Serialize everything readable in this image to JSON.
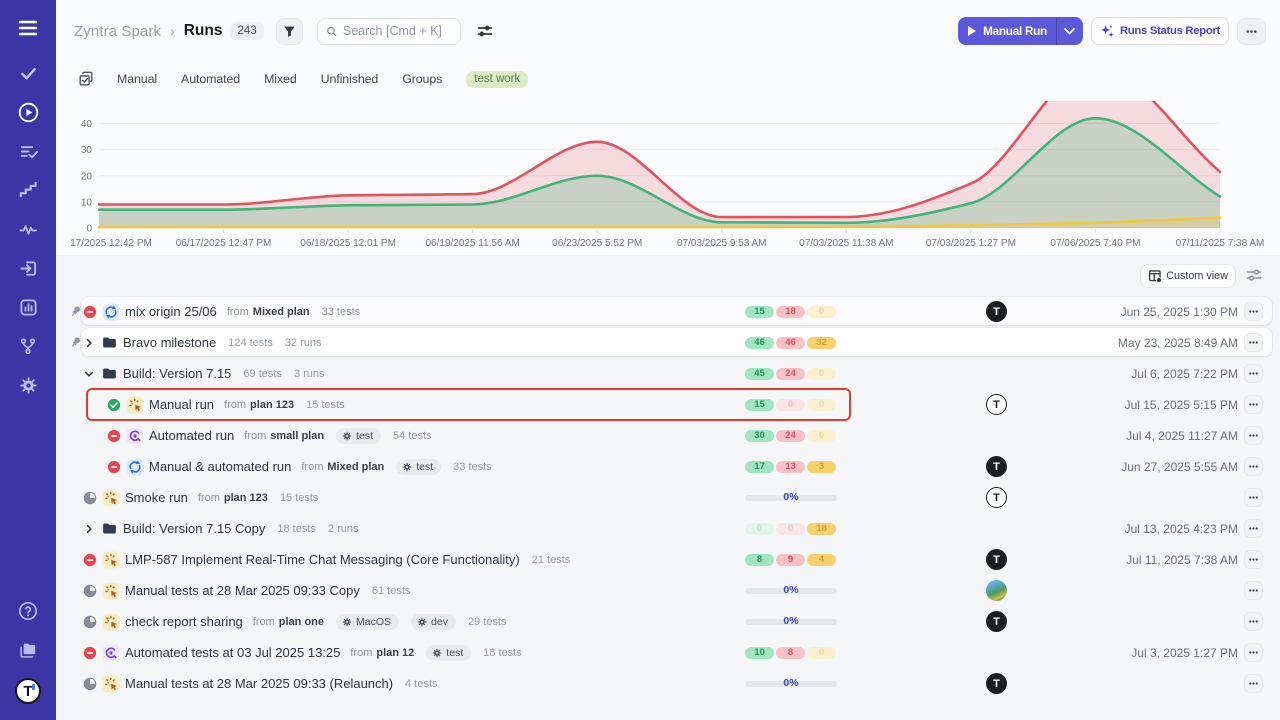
{
  "app": {
    "accent_color": "#5b59d8",
    "sidebar_color": "#3b35a6",
    "highlight_color": "#e7392e"
  },
  "sidebar": {
    "items": [
      {
        "icon": "menu-icon"
      },
      {
        "icon": "check-icon"
      },
      {
        "icon": "play-circle-icon",
        "active": true
      },
      {
        "icon": "list-check-icon"
      },
      {
        "icon": "steps-icon"
      },
      {
        "icon": "pulse-icon"
      },
      {
        "icon": "box-arrow-icon"
      },
      {
        "icon": "chart-box-icon"
      },
      {
        "icon": "branch-icon"
      },
      {
        "icon": "gear-icon"
      }
    ],
    "bottom": [
      {
        "icon": "help-icon"
      },
      {
        "icon": "folders-icon"
      }
    ],
    "avatar_letter": "T"
  },
  "header": {
    "brand": "Zyntra Spark",
    "separator": "›",
    "page": "Runs",
    "count": "243",
    "search_placeholder": "Search [Cmd + K]",
    "run_button": "Manual Run",
    "report_button": "Runs Status Report"
  },
  "tabs": {
    "items": [
      "Manual",
      "Automated",
      "Mixed",
      "Unfinished",
      "Groups"
    ],
    "tag": "test work"
  },
  "chart_data": {
    "type": "area",
    "title": "",
    "xlabel": "",
    "ylabel": "",
    "grid": "horizontal",
    "legend": "none",
    "yticks": [
      0,
      10,
      20,
      30,
      40
    ],
    "ylim": [
      0,
      48.6
    ],
    "x_labels": [
      "17/2025 12:42 PM",
      "06/17/2025 12:47 PM",
      "06/18/2025 12:01 PM",
      "06/19/2025 11:56 AM",
      "06/23/2025 5:52 PM",
      "07/03/2025 9:53 AM",
      "07/03/2025 11:38 AM",
      "07/03/2025 1:27 PM",
      "07/06/2025 7:40 PM",
      "07/11/2025 7:38 AM"
    ],
    "series": [
      {
        "name": "failed",
        "line_color": "#e0535f",
        "fill_color": "rgba(223,82,94,0.19)",
        "values": [
          9,
          9,
          12.5,
          13,
          33,
          4.2,
          4.2,
          17,
          62,
          21.5
        ],
        "note": "peak clipped at top of plot"
      },
      {
        "name": "passed",
        "line_color": "#3fb577",
        "fill_color": "rgba(63,181,119,0.24)",
        "values": [
          7,
          7,
          8.7,
          9,
          20,
          2.2,
          2,
          9.5,
          42,
          12
        ]
      },
      {
        "name": "other",
        "line_color": "#f0c73e",
        "fill_color": "rgba(240,199,62,0.25)",
        "values": [
          0.4,
          0.4,
          0.4,
          0.4,
          0.4,
          0.4,
          0.5,
          1,
          2,
          4
        ]
      }
    ]
  },
  "viewbar": {
    "custom_view": "Custom view"
  },
  "table": {
    "rows": [
      {
        "pinned": true,
        "card": true,
        "sel": true,
        "kind": "run",
        "status": "blocked",
        "run_type": "mixed",
        "title": "mix origin 25/06",
        "from_label": "from",
        "plan": "Mixed plan",
        "tags": [],
        "meta": [
          "33 tests"
        ],
        "badges": [
          {
            "v": "15",
            "dim": false
          },
          {
            "v": "18",
            "dim": false
          },
          {
            "v": "0",
            "dim": true
          }
        ],
        "progress": null,
        "avatar": "dark",
        "avatar_letter": "T",
        "date": "Jun 25, 2025 1:30 PM"
      },
      {
        "pinned": true,
        "card": true,
        "kind": "group",
        "chevron": "right",
        "title": "Bravo milestone",
        "meta": [
          "124 tests",
          "32 runs"
        ],
        "badges": [
          {
            "v": "46",
            "dim": false
          },
          {
            "v": "46",
            "dim": false
          },
          {
            "v": "32",
            "dim": false
          }
        ],
        "progress": null,
        "avatar": null,
        "date": "May 23, 2025 8:49 AM"
      },
      {
        "kind": "group",
        "chevron": "down",
        "title": "Build: Version 7.15",
        "meta": [
          "69 tests",
          "3 runs"
        ],
        "badges": [
          {
            "v": "45",
            "dim": false
          },
          {
            "v": "24",
            "dim": false
          },
          {
            "v": "0",
            "dim": true
          }
        ],
        "progress": null,
        "avatar": null,
        "date": "Jul 6, 2025 7:22 PM"
      },
      {
        "indent": 1,
        "highlighted": true,
        "kind": "run",
        "status": "passed",
        "run_type": "manual",
        "title": "Manual run",
        "from_label": "from",
        "plan": "plan 123",
        "tags": [],
        "meta": [
          "15 tests"
        ],
        "badges": [
          {
            "v": "15",
            "dim": false
          },
          {
            "v": "0",
            "dim": true
          },
          {
            "v": "0",
            "dim": true
          }
        ],
        "progress": null,
        "avatar": "light",
        "avatar_letter": "T",
        "date": "Jul 15, 2025 5:15 PM"
      },
      {
        "indent": 1,
        "kind": "run",
        "status": "blocked",
        "run_type": "automated",
        "title": "Automated run",
        "from_label": "from",
        "plan": "small plan",
        "tags": [
          "test"
        ],
        "meta": [
          "54 tests"
        ],
        "badges": [
          {
            "v": "30",
            "dim": false
          },
          {
            "v": "24",
            "dim": false
          },
          {
            "v": "0",
            "dim": true
          }
        ],
        "progress": null,
        "avatar": null,
        "date": "Jul 4, 2025 11:27 AM"
      },
      {
        "indent": 1,
        "kind": "run",
        "status": "blocked",
        "run_type": "mixed",
        "title": "Manual & automated run",
        "from_label": "from",
        "plan": "Mixed plan",
        "tags": [
          "test"
        ],
        "meta": [
          "33 tests"
        ],
        "badges": [
          {
            "v": "17",
            "dim": false
          },
          {
            "v": "13",
            "dim": false
          },
          {
            "v": "3",
            "dim": false
          }
        ],
        "progress": null,
        "avatar": "dark",
        "avatar_letter": "T",
        "date": "Jun 27, 2025 5:55 AM"
      },
      {
        "kind": "run",
        "status": "progress",
        "run_type": "manual",
        "title": "Smoke run",
        "from_label": "from",
        "plan": "plan 123",
        "tags": [],
        "meta": [
          "15 tests"
        ],
        "badges": null,
        "progress": "0%",
        "avatar": "light",
        "avatar_letter": "T",
        "date": null
      },
      {
        "kind": "group",
        "chevron": "right",
        "title": "Build: Version 7.15 Copy",
        "meta": [
          "18 tests",
          "2 runs"
        ],
        "badges": [
          {
            "v": "0",
            "dim": true
          },
          {
            "v": "0",
            "dim": true
          },
          {
            "v": "18",
            "dim": false
          }
        ],
        "progress": null,
        "avatar": null,
        "date": "Jul 13, 2025 4:23 PM"
      },
      {
        "kind": "run",
        "status": "blocked",
        "run_type": "manual",
        "title": "LMP-587 Implement Real-Time Chat Messaging (Core Functionality)",
        "plan": null,
        "tags": [],
        "meta": [
          "21 tests"
        ],
        "badges": [
          {
            "v": "8",
            "dim": false
          },
          {
            "v": "9",
            "dim": false
          },
          {
            "v": "4",
            "dim": false
          }
        ],
        "progress": null,
        "avatar": "dark",
        "avatar_letter": "T",
        "date": "Jul 11, 2025 7:38 AM"
      },
      {
        "kind": "run",
        "status": "progress",
        "run_type": "manual",
        "title": "Manual tests at 28 Mar 2025 09:33 Copy",
        "plan": null,
        "tags": [],
        "meta": [
          "61 tests"
        ],
        "badges": null,
        "progress": "0%",
        "avatar": "photo",
        "avatar_letter": "",
        "date": null
      },
      {
        "kind": "run",
        "status": "progress",
        "run_type": "manual",
        "title": "check report sharing",
        "from_label": "from",
        "plan": "plan one",
        "tags": [
          "MacOS",
          "dev"
        ],
        "meta": [
          "29 tests"
        ],
        "badges": null,
        "progress": "0%",
        "avatar": "dark",
        "avatar_letter": "T",
        "date": null
      },
      {
        "kind": "run",
        "status": "blocked",
        "run_type": "automated",
        "title": "Automated tests at 03 Jul 2025 13:25",
        "from_label": "from",
        "plan": "plan 12",
        "tags": [
          "test"
        ],
        "meta": [
          "18 tests"
        ],
        "badges": [
          {
            "v": "10",
            "dim": false
          },
          {
            "v": "8",
            "dim": false
          },
          {
            "v": "0",
            "dim": true
          }
        ],
        "progress": null,
        "avatar": null,
        "date": "Jul 3, 2025 1:27 PM"
      },
      {
        "kind": "run",
        "status": "progress",
        "run_type": "manual",
        "title": "Manual tests at 28 Mar 2025 09:33 (Relaunch)",
        "plan": null,
        "tags": [],
        "meta": [
          "4 tests"
        ],
        "badges": null,
        "progress": "0%",
        "avatar": "dark",
        "avatar_letter": "T",
        "date": null
      }
    ]
  }
}
